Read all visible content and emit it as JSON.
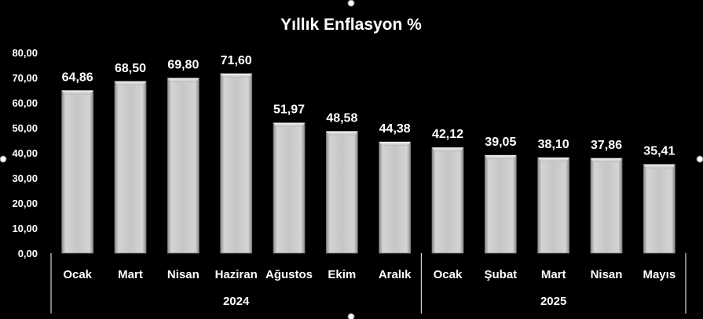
{
  "chart_data": {
    "type": "bar",
    "title": "Yıllık Enflasyon %",
    "xlabel": "",
    "ylabel": "",
    "ylim": [
      0,
      80
    ],
    "yticks": [
      "0,00",
      "10,00",
      "20,00",
      "30,00",
      "40,00",
      "50,00",
      "60,00",
      "70,00",
      "80,00"
    ],
    "categories": [
      "Ocak",
      "Mart",
      "Nisan",
      "Haziran",
      "Ağustos",
      "Ekim",
      "Aralık",
      "Ocak",
      "Şubat",
      "Mart",
      "Nisan",
      "Mayıs"
    ],
    "values": [
      64.86,
      68.5,
      69.8,
      71.6,
      51.97,
      48.58,
      44.38,
      42.12,
      39.05,
      38.1,
      37.86,
      35.41
    ],
    "value_labels": [
      "64,86",
      "68,50",
      "69,80",
      "71,60",
      "51,97",
      "48,58",
      "44,38",
      "42,12",
      "39,05",
      "38,10",
      "37,86",
      "35,41"
    ],
    "groups": [
      {
        "label": "2024",
        "count": 7
      },
      {
        "label": "2025",
        "count": 5
      }
    ],
    "grid": false,
    "legend": "none",
    "colors": {
      "background": "#000000",
      "bar_light": "#ededed",
      "bar_mid": "#c8c8c8",
      "bar_dark": "#8e8e8e",
      "text": "#ffffff"
    }
  }
}
